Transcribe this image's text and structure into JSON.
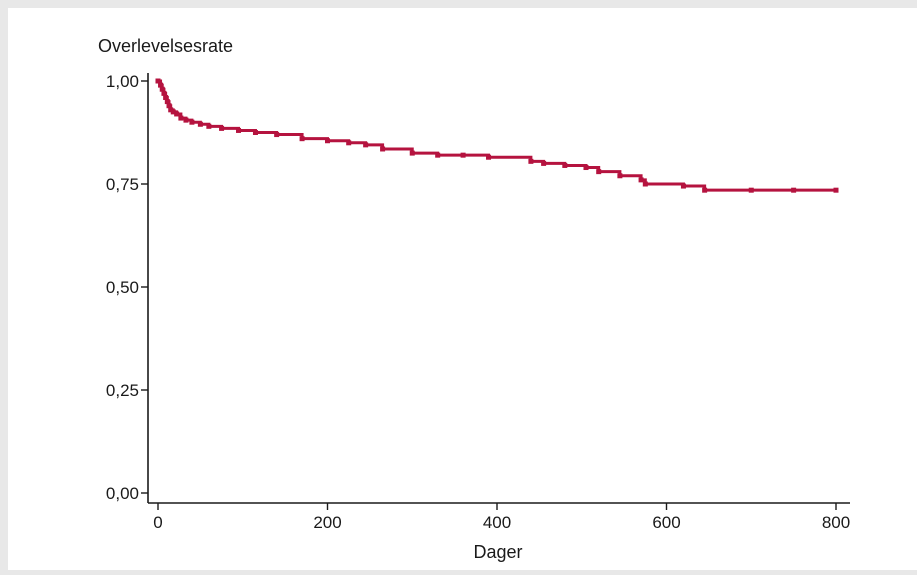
{
  "chart_data": {
    "type": "line",
    "title": "",
    "ylabel": "Overlevelsesrate",
    "xlabel": "Dager",
    "xlim": [
      0,
      800
    ],
    "ylim": [
      0,
      1
    ],
    "grid": false,
    "x_ticks": [
      0,
      200,
      400,
      600,
      800
    ],
    "x_tick_labels": [
      "0",
      "200",
      "400",
      "600",
      "800"
    ],
    "y_ticks": [
      0,
      0.25,
      0.5,
      0.75,
      1.0
    ],
    "y_tick_labels": [
      "0,00",
      "0,25",
      "0,50",
      "0,75",
      "1,00"
    ],
    "line_color": "#b5133f",
    "series": [
      {
        "step": true,
        "x": [
          0,
          3,
          5,
          7,
          9,
          11,
          13,
          15,
          18,
          22,
          27,
          33,
          40,
          50,
          60,
          75,
          95,
          115,
          140,
          170,
          200,
          225,
          245,
          265,
          300,
          330,
          360,
          390,
          440,
          455,
          480,
          505,
          520,
          545,
          570,
          575,
          620,
          645,
          700,
          750,
          800
        ],
        "y": [
          1.0,
          0.99,
          0.98,
          0.97,
          0.96,
          0.95,
          0.94,
          0.93,
          0.925,
          0.92,
          0.91,
          0.905,
          0.9,
          0.895,
          0.89,
          0.885,
          0.88,
          0.875,
          0.87,
          0.86,
          0.855,
          0.85,
          0.845,
          0.835,
          0.825,
          0.82,
          0.82,
          0.815,
          0.805,
          0.8,
          0.795,
          0.79,
          0.78,
          0.77,
          0.76,
          0.75,
          0.745,
          0.735,
          0.735,
          0.735,
          0.735
        ]
      }
    ]
  }
}
